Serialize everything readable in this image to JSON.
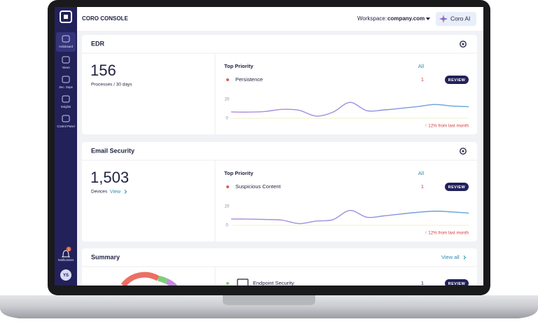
{
  "topbar": {
    "brand": "CORO CONSOLE",
    "workspace_label": "Workspace:",
    "workspace": "company.com",
    "ai_button": "Coro AI"
  },
  "sidebar": {
    "items": [
      "Actioboard",
      "Views",
      "Sec. Gaps",
      "Insights",
      "Control Panel"
    ],
    "notifications": "Notifications",
    "notification_count": "1",
    "avatar": "YS"
  },
  "cards": [
    {
      "title": "EDR",
      "metric": "156",
      "metric_label": "Processes / 30 days",
      "priority_title": "Top Priority",
      "all_link": "All",
      "item": "Persistence",
      "item_count": "1",
      "action": "REVIEW",
      "yticks": [
        0,
        20
      ],
      "trend": [
        6.7,
        6.5,
        7.2,
        9.4,
        8.5,
        2.3,
        6.5,
        16.8,
        8.0,
        8.8,
        10.5,
        12.4,
        14.6,
        13.0,
        12.2
      ],
      "change": "↑ 12% from last month"
    },
    {
      "title": "Email Security",
      "metric": "1,503",
      "metric_label": "Devices",
      "metric_link": "View",
      "priority_title": "Top Priority",
      "all_link": "All",
      "item": "Suspicious Content",
      "item_count": "1",
      "action": "REVIEW",
      "yticks": [
        0,
        20
      ],
      "trend": [
        6.7,
        6.6,
        6.2,
        5.5,
        1.8,
        4.5,
        6.0,
        15.8,
        8.6,
        10.0,
        12.0,
        13.8,
        15.0,
        14.2,
        12.9
      ],
      "change": "↑ 12% from last month"
    }
  ],
  "summary": {
    "title": "Summary",
    "view_all": "View all",
    "item": "Endpoint Security",
    "item_count": "1",
    "action": "REVIEW"
  }
}
